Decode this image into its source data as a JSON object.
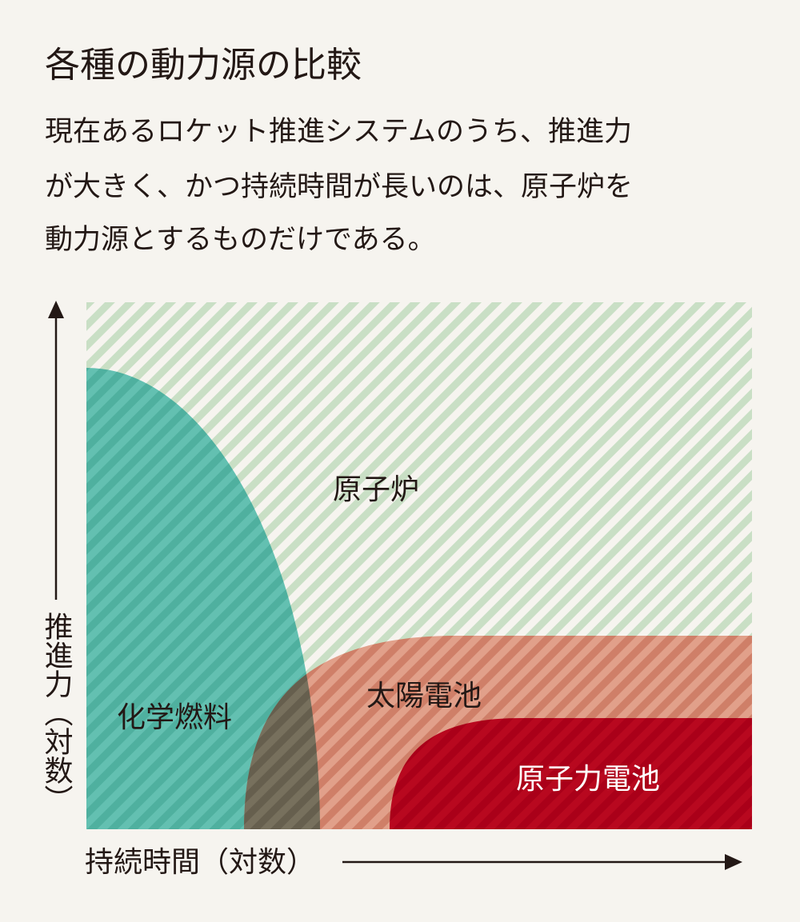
{
  "title": "各種の動力源の比較",
  "description": [
    "現在あるロケット推進システムのうち、推進力",
    "が大きく、かつ持続時間が長いのは、原子炉を",
    "動力源とするものだけである。"
  ],
  "regions": {
    "reactor": "原子炉",
    "chemical": "化学燃料",
    "solar": "太陽電池",
    "rtg": "原子力電池"
  },
  "axes": {
    "y": "推進力（対数）",
    "x": "持続時間（対数）"
  }
}
